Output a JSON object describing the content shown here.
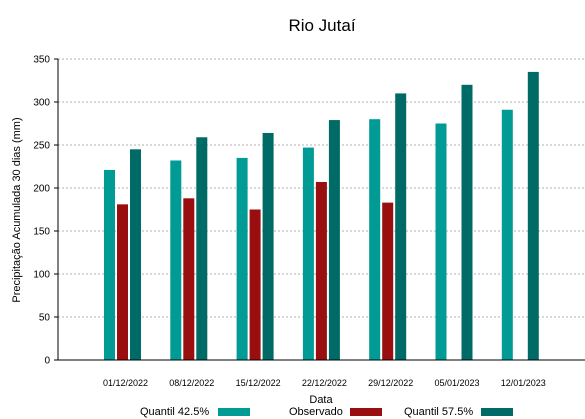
{
  "chart_data": {
    "type": "bar",
    "title": "Rio Jutaí",
    "xlabel": "Data",
    "ylabel": "Precipitação Acumulada 30 dias (mm)",
    "ylim": [
      0,
      350
    ],
    "yticks": [
      0,
      50,
      100,
      150,
      200,
      250,
      300,
      350
    ],
    "grid": true,
    "legend_position": "bottom",
    "categories": [
      "01/12/2022",
      "08/12/2022",
      "15/12/2022",
      "22/12/2022",
      "29/12/2022",
      "05/01/2023",
      "12/01/2023"
    ],
    "series": [
      {
        "name": "Quantil 42.5%",
        "color": "#009b95",
        "values": [
          221,
          232,
          235,
          247,
          280,
          275,
          291
        ]
      },
      {
        "name": "Observado",
        "color": "#990f0f",
        "values": [
          181,
          188,
          175,
          207,
          183,
          null,
          null
        ]
      },
      {
        "name": "Quantil 57.5%",
        "color": "#006b66",
        "values": [
          245,
          259,
          264,
          279,
          310,
          320,
          335
        ]
      }
    ]
  }
}
